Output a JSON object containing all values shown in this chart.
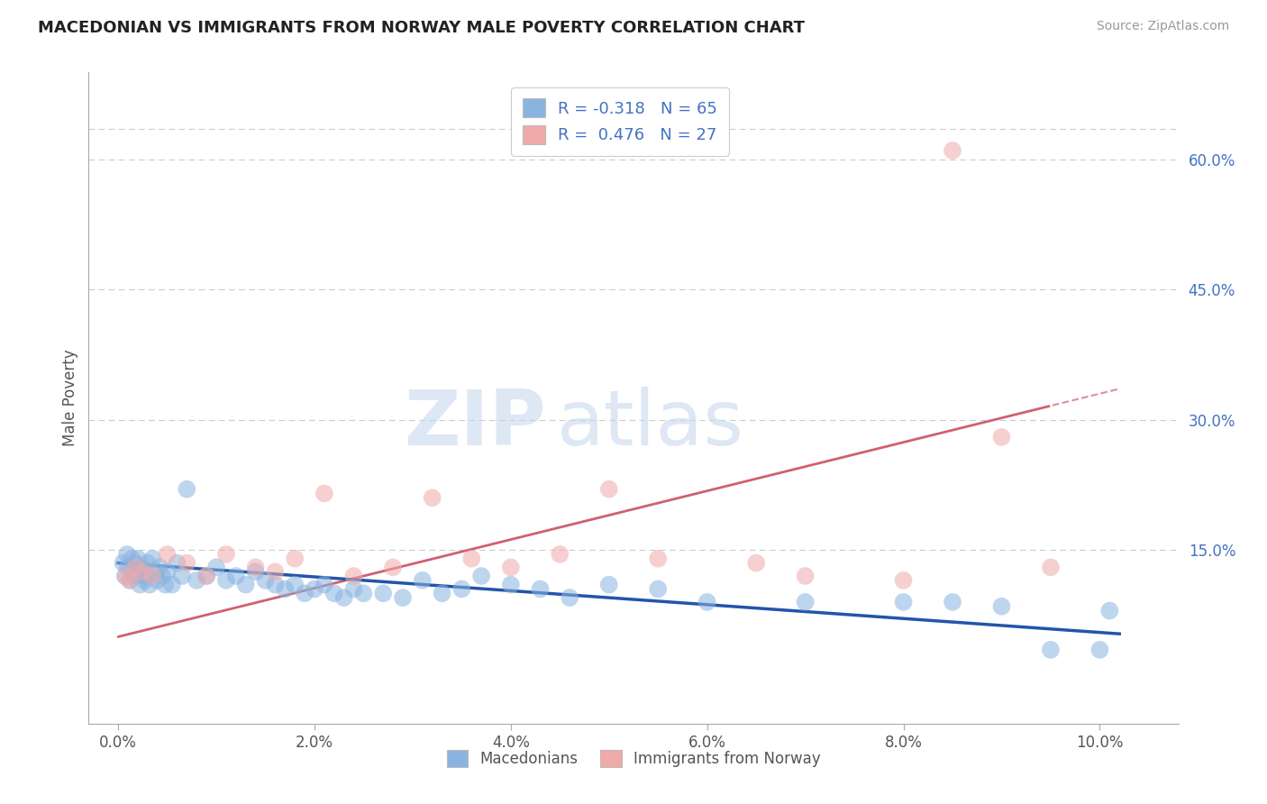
{
  "title": "MACEDONIAN VS IMMIGRANTS FROM NORWAY MALE POVERTY CORRELATION CHART",
  "source": "Source: ZipAtlas.com",
  "ylabel": "Male Poverty",
  "x_tick_labels": [
    "0.0%",
    "2.0%",
    "4.0%",
    "6.0%",
    "8.0%",
    "10.0%"
  ],
  "x_tick_values": [
    0.0,
    2.0,
    4.0,
    6.0,
    8.0,
    10.0
  ],
  "y_tick_labels": [
    "15.0%",
    "30.0%",
    "45.0%",
    "60.0%"
  ],
  "y_tick_values": [
    15.0,
    30.0,
    45.0,
    60.0
  ],
  "xlim": [
    -0.3,
    10.8
  ],
  "ylim": [
    -5.0,
    70.0
  ],
  "legend1_label": "Macedonians",
  "legend2_label": "Immigrants from Norway",
  "r1": -0.318,
  "n1": 65,
  "r2": 0.476,
  "n2": 27,
  "color_blue": "#8ab4e0",
  "color_pink": "#f0aaaa",
  "color_blue_line": "#2255aa",
  "color_pink_line": "#d06070",
  "watermark_zip": "ZIP",
  "watermark_atlas": "atlas",
  "blue_scatter_x": [
    0.05,
    0.07,
    0.09,
    0.1,
    0.12,
    0.14,
    0.15,
    0.17,
    0.18,
    0.2,
    0.22,
    0.24,
    0.25,
    0.27,
    0.28,
    0.3,
    0.32,
    0.35,
    0.38,
    0.4,
    0.42,
    0.45,
    0.48,
    0.5,
    0.55,
    0.6,
    0.65,
    0.7,
    0.8,
    0.9,
    1.0,
    1.1,
    1.2,
    1.3,
    1.4,
    1.5,
    1.6,
    1.7,
    1.8,
    1.9,
    2.0,
    2.1,
    2.2,
    2.3,
    2.4,
    2.5,
    2.7,
    2.9,
    3.1,
    3.3,
    3.5,
    3.7,
    4.0,
    4.3,
    4.6,
    5.0,
    5.5,
    6.0,
    7.0,
    8.0,
    8.5,
    9.0,
    9.5,
    10.0,
    10.1
  ],
  "blue_scatter_y": [
    13.5,
    12.0,
    14.5,
    13.0,
    11.5,
    14.0,
    12.5,
    13.5,
    12.0,
    14.0,
    11.0,
    12.5,
    13.0,
    11.5,
    12.0,
    13.5,
    11.0,
    14.0,
    12.5,
    11.5,
    13.0,
    12.0,
    11.0,
    12.5,
    11.0,
    13.5,
    12.0,
    22.0,
    11.5,
    12.0,
    13.0,
    11.5,
    12.0,
    11.0,
    12.5,
    11.5,
    11.0,
    10.5,
    11.0,
    10.0,
    10.5,
    11.0,
    10.0,
    9.5,
    10.5,
    10.0,
    10.0,
    9.5,
    11.5,
    10.0,
    10.5,
    12.0,
    11.0,
    10.5,
    9.5,
    11.0,
    10.5,
    9.0,
    9.0,
    9.0,
    9.0,
    8.5,
    3.5,
    3.5,
    8.0
  ],
  "pink_scatter_x": [
    0.08,
    0.12,
    0.18,
    0.25,
    0.35,
    0.5,
    0.7,
    0.9,
    1.1,
    1.4,
    1.6,
    1.8,
    2.1,
    2.4,
    2.8,
    3.2,
    3.6,
    4.0,
    4.5,
    5.0,
    5.5,
    6.5,
    7.0,
    8.0,
    8.5,
    9.0,
    9.5
  ],
  "pink_scatter_y": [
    12.0,
    11.5,
    13.0,
    12.5,
    12.0,
    14.5,
    13.5,
    12.0,
    14.5,
    13.0,
    12.5,
    14.0,
    21.5,
    12.0,
    13.0,
    21.0,
    14.0,
    13.0,
    14.5,
    22.0,
    14.0,
    13.5,
    12.0,
    11.5,
    61.0,
    28.0,
    13.0
  ]
}
